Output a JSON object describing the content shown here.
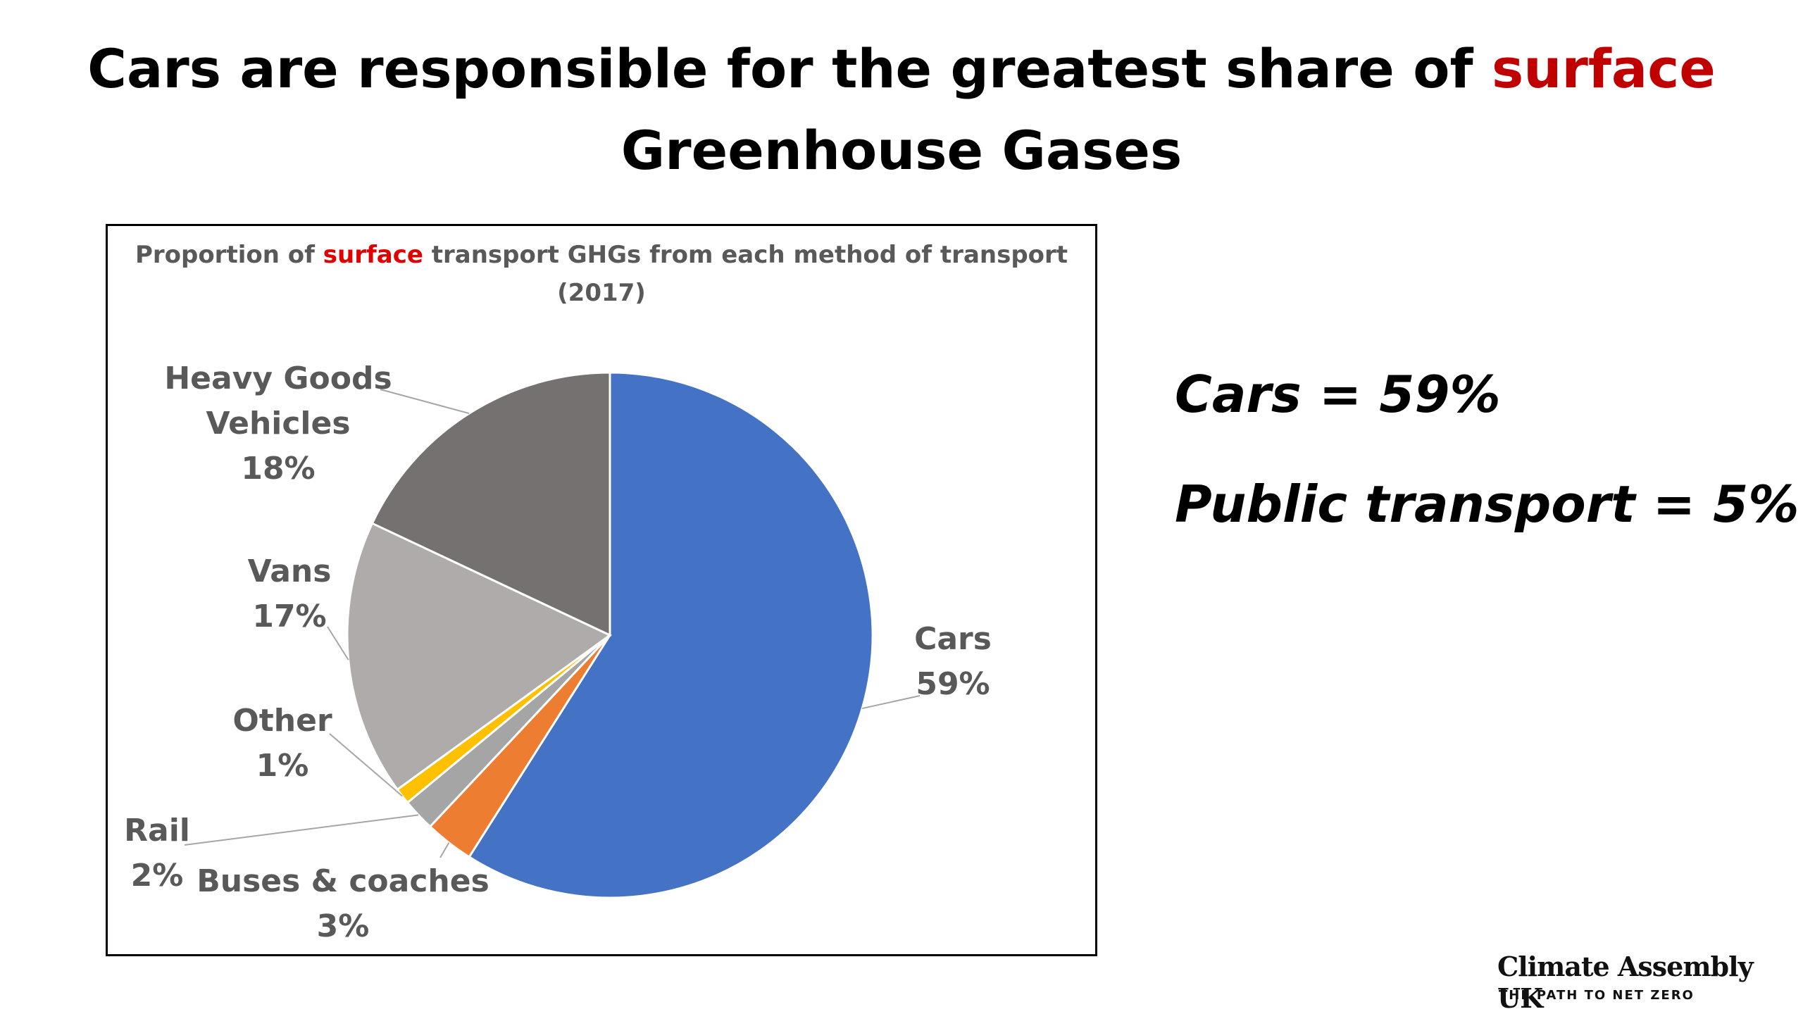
{
  "header": {
    "title_start": "Cars are responsible for the greatest share of",
    "title_highlight": "surface",
    "title_end": "Greenhouse Gases"
  },
  "chart_data": {
    "type": "pie",
    "title_start": "Proportion of",
    "title_highlight": "surface",
    "title_end": "transport GHGs from each method of transport (2017)",
    "categories": [
      "Cars",
      "Buses & coaches",
      "Rail",
      "Other",
      "Vans",
      "Heavy Goods Vehicles"
    ],
    "values": [
      59,
      3,
      2,
      1,
      17,
      18
    ],
    "value_labels": [
      "59%",
      "3%",
      "2%",
      "1%",
      "17%",
      "18%"
    ],
    "colors": [
      "#4472c4",
      "#ed7d31",
      "#a5a5a5",
      "#ffc000",
      "#afabab",
      "#767171"
    ]
  },
  "annotations": [
    "Cars = 59%",
    "Public transport = 5%"
  ],
  "logo": {
    "name": "Climate Assembly UK",
    "tagline": "THE PATH TO NET ZERO"
  }
}
